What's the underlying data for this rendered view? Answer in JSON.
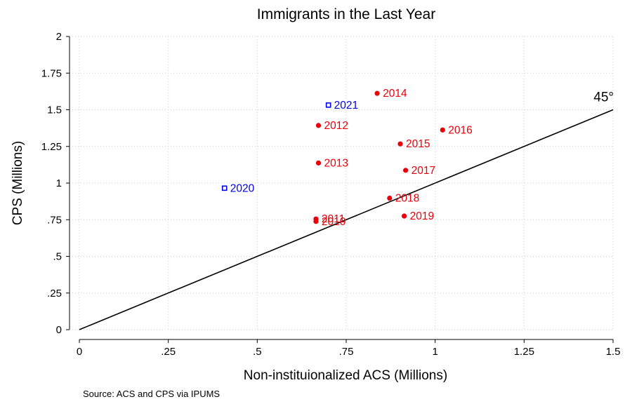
{
  "chart_data": {
    "type": "scatter",
    "title": "Immigrants in the Last Year",
    "xlabel": "Non-instituionalized ACS (Millions)",
    "ylabel": "CPS (Millions)",
    "source": "Source: ACS and CPS via IPUMS",
    "xlim": [
      0,
      1.5
    ],
    "ylim": [
      0,
      2
    ],
    "xticks": [
      {
        "value": 0,
        "label": "0"
      },
      {
        "value": 0.25,
        "label": ".25"
      },
      {
        "value": 0.5,
        "label": ".5"
      },
      {
        "value": 0.75,
        "label": ".75"
      },
      {
        "value": 1,
        "label": "1"
      },
      {
        "value": 1.25,
        "label": "1.25"
      },
      {
        "value": 1.5,
        "label": "1.5"
      }
    ],
    "yticks": [
      {
        "value": 0,
        "label": "0"
      },
      {
        "value": 0.25,
        "label": ".25"
      },
      {
        "value": 0.5,
        "label": ".5"
      },
      {
        "value": 0.75,
        "label": ".75"
      },
      {
        "value": 1,
        "label": "1"
      },
      {
        "value": 1.25,
        "label": "1.25"
      },
      {
        "value": 1.5,
        "label": "1.5"
      },
      {
        "value": 1.75,
        "label": "1.75"
      },
      {
        "value": 2,
        "label": "2"
      }
    ],
    "grid": true,
    "reference_line": {
      "label": "45°",
      "from": [
        0,
        0
      ],
      "to": [
        1.5,
        1.5
      ]
    },
    "series": [
      {
        "marker": "filled-circle",
        "color": "#e8000b",
        "points": [
          {
            "x": 0.665,
            "y": 0.755,
            "label": "2011"
          },
          {
            "x": 0.672,
            "y": 1.393,
            "label": "2012"
          },
          {
            "x": 0.672,
            "y": 1.137,
            "label": "2013"
          },
          {
            "x": 0.837,
            "y": 1.612,
            "label": "2014"
          },
          {
            "x": 0.902,
            "y": 1.267,
            "label": "2015"
          },
          {
            "x": 1.021,
            "y": 1.362,
            "label": "2016"
          },
          {
            "x": 0.917,
            "y": 1.087,
            "label": "2017"
          },
          {
            "x": 0.872,
            "y": 0.897,
            "label": "2018"
          },
          {
            "x": 0.913,
            "y": 0.775,
            "label": "2019"
          },
          {
            "x": 0.665,
            "y": 0.738,
            "label": "2010"
          }
        ]
      },
      {
        "marker": "hollow-square",
        "color": "#0000ee",
        "points": [
          {
            "x": 0.408,
            "y": 0.965,
            "label": "2020"
          },
          {
            "x": 0.7,
            "y": 1.532,
            "label": "2021"
          }
        ]
      }
    ]
  }
}
